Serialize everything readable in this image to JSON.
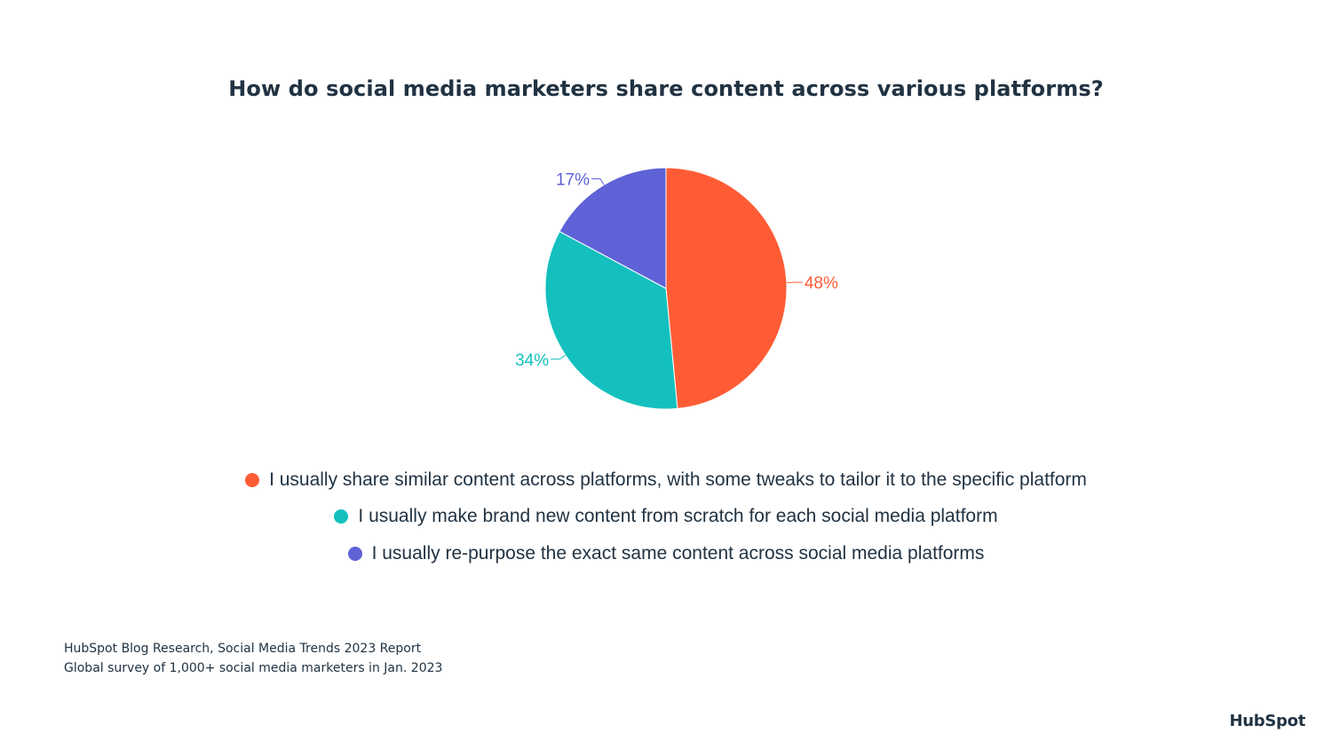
{
  "chart_data": {
    "type": "pie",
    "title": "How do social media marketers share content across various platforms?",
    "legend_position": "bottom",
    "slices": [
      {
        "label": "I usually share similar content across platforms, with some tweaks to tailor it to the specific platform",
        "value": 48,
        "value_label": "48%",
        "color": "#ff5c35"
      },
      {
        "label": "I usually make brand new content from scratch for each social media platform",
        "value": 34,
        "value_label": "34%",
        "color": "#13c0be"
      },
      {
        "label": "I usually re-purpose the exact same content across social media platforms",
        "value": 17,
        "value_label": "17%",
        "color": "#5e62d6"
      }
    ]
  },
  "source": {
    "line1": "HubSpot Blog Research, Social Media Trends 2023 Report",
    "line2": "Global survey of 1,000+ social media marketers in Jan. 2023"
  },
  "brand": {
    "logo_text": "HubSpot"
  }
}
